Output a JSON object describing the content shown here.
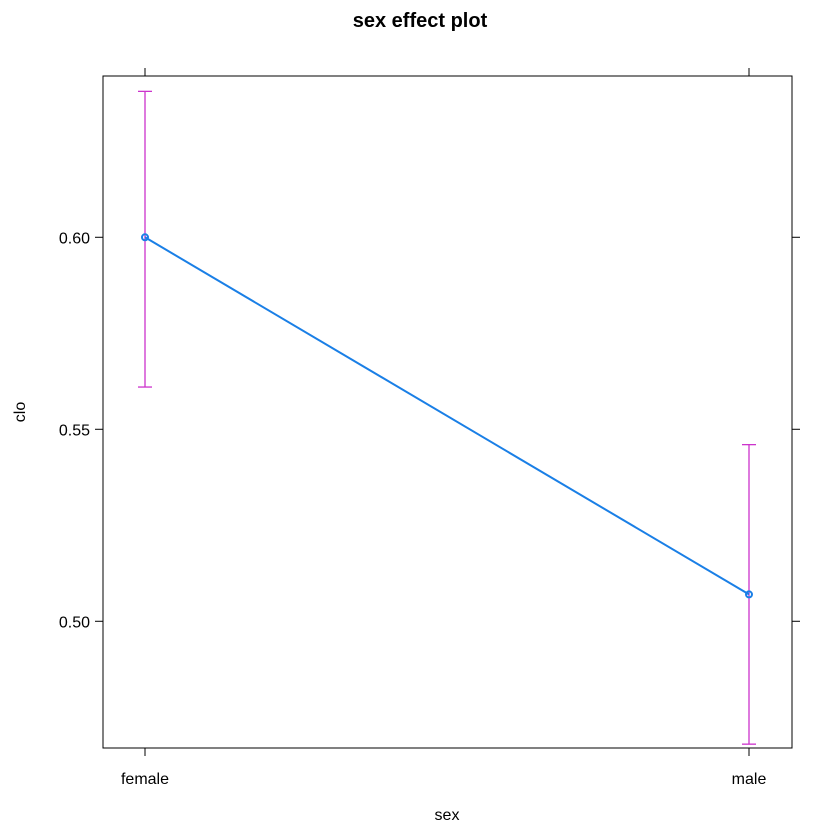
{
  "chart_data": {
    "type": "line",
    "title": "sex effect plot",
    "xlabel": "sex",
    "ylabel": "clo",
    "categories": [
      "female",
      "male"
    ],
    "series": [
      {
        "values": [
          0.6,
          0.507
        ],
        "lower": [
          0.561,
          0.468
        ],
        "upper": [
          0.638,
          0.546
        ]
      }
    ],
    "ylim": [
      0.467,
      0.642
    ],
    "yticks": [
      0.5,
      0.55,
      0.6
    ],
    "ytick_labels": [
      "0.50",
      "0.55",
      "0.60"
    ],
    "grid": false,
    "colors": {
      "line": "#1a7fe6",
      "ci": "#cc33cc"
    }
  }
}
